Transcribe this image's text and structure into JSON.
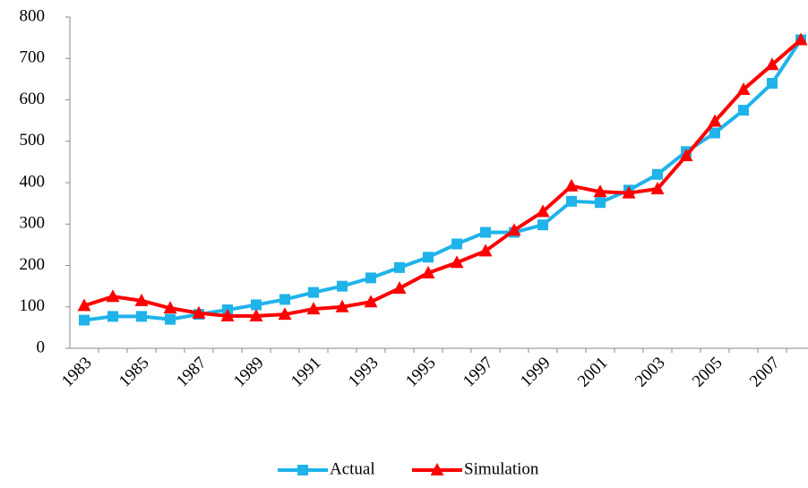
{
  "chart_data": {
    "type": "line",
    "categories": [
      "1983",
      null,
      "1985",
      null,
      "1987",
      null,
      "1989",
      null,
      "1991",
      null,
      "1993",
      null,
      "1995",
      null,
      "1997",
      null,
      "1999",
      null,
      "2001",
      null,
      "2003",
      null,
      "2005",
      null,
      "2007",
      null
    ],
    "series": [
      {
        "name": "Actual",
        "color": "#1fb3ea",
        "marker": "square",
        "values": [
          68,
          77,
          77,
          70,
          82,
          93,
          105,
          118,
          135,
          150,
          170,
          195,
          220,
          252,
          280,
          280,
          298,
          355,
          352,
          382,
          420,
          475,
          520,
          575,
          640,
          745
        ]
      },
      {
        "name": "Simulation",
        "color": "#ff0000",
        "marker": "triangle",
        "values": [
          103,
          125,
          115,
          97,
          85,
          78,
          78,
          82,
          95,
          100,
          112,
          145,
          182,
          207,
          235,
          285,
          330,
          392,
          378,
          375,
          385,
          465,
          548,
          625,
          685,
          745
        ]
      }
    ],
    "ylim": [
      0,
      800
    ],
    "yticks": [
      0,
      100,
      200,
      300,
      400,
      500,
      600,
      700,
      800
    ],
    "legend": "bottom"
  }
}
